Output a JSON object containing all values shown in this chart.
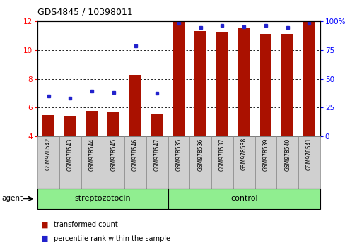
{
  "title": "GDS4845 / 10398011",
  "samples": [
    "GSM978542",
    "GSM978543",
    "GSM978544",
    "GSM978545",
    "GSM978546",
    "GSM978547",
    "GSM978535",
    "GSM978536",
    "GSM978537",
    "GSM978538",
    "GSM978539",
    "GSM978540",
    "GSM978541"
  ],
  "red_values": [
    5.45,
    5.4,
    5.75,
    5.65,
    8.25,
    5.52,
    11.95,
    11.3,
    11.2,
    11.5,
    11.1,
    11.1,
    11.95
  ],
  "blue_values": [
    6.8,
    6.65,
    7.15,
    7.05,
    10.3,
    7.0,
    11.88,
    11.55,
    11.72,
    11.62,
    11.72,
    11.58,
    11.88
  ],
  "ylim": [
    4,
    12
  ],
  "yticks_left": [
    4,
    6,
    8,
    10,
    12
  ],
  "yticks_right_labels": [
    "0",
    "25",
    "50",
    "75",
    "100%"
  ],
  "bar_color": "#AA1100",
  "dot_color": "#2222CC",
  "bar_bottom": 4,
  "bar_width": 0.55,
  "legend_red": "transformed count",
  "legend_blue": "percentile rank within the sample",
  "agent_label": "agent",
  "group_color": "#90EE90",
  "grid_color": "#000000",
  "bg_color": "#FFFFFF",
  "label_col_color": "#D0D0D0",
  "label_col_edge": "#888888"
}
